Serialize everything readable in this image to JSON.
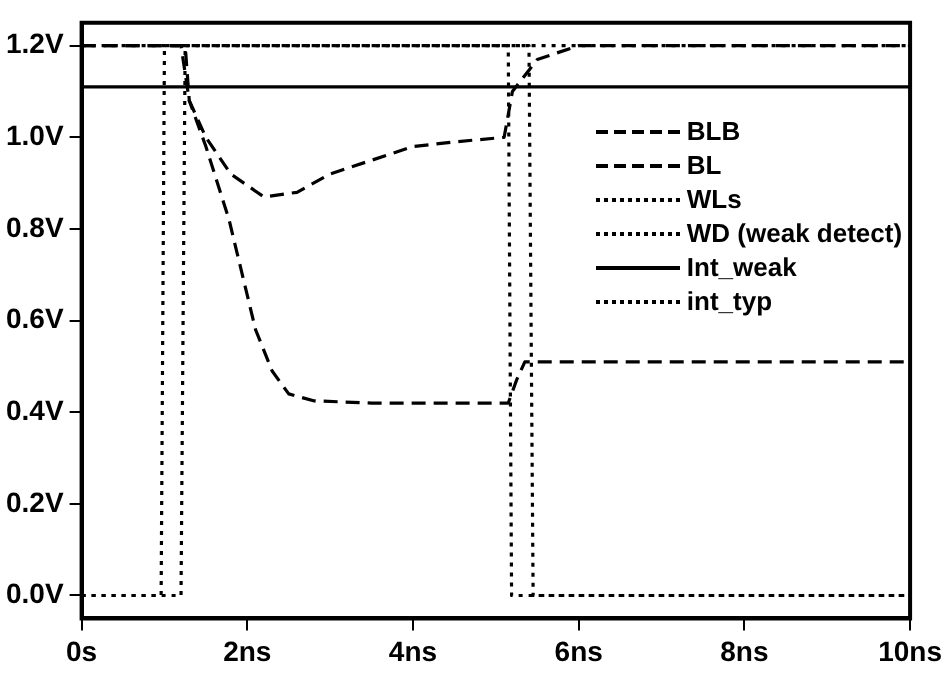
{
  "chart_data": {
    "type": "line",
    "xlim": [
      0,
      10
    ],
    "ylim": [
      -0.05,
      1.25
    ],
    "xticks": [
      {
        "value": 0,
        "label": "0s"
      },
      {
        "value": 2,
        "label": "2ns"
      },
      {
        "value": 4,
        "label": "4ns"
      },
      {
        "value": 6,
        "label": "6ns"
      },
      {
        "value": 8,
        "label": "8ns"
      },
      {
        "value": 10,
        "label": "10ns"
      }
    ],
    "yticks": [
      {
        "value": 0,
        "label": "0.0V"
      },
      {
        "value": 0.2,
        "label": "0.2V"
      },
      {
        "value": 0.4,
        "label": "0.4V"
      },
      {
        "value": 0.6,
        "label": "0.6V"
      },
      {
        "value": 0.8,
        "label": "0.8V"
      },
      {
        "value": 1.0,
        "label": "1.0V"
      },
      {
        "value": 1.2,
        "label": "1.2V"
      }
    ],
    "grid": false,
    "legend": "top right",
    "marker": "none",
    "series": [
      {
        "name": "BLB",
        "color": "#000000",
        "line_style": "dashed",
        "x": [
          0,
          1.2,
          1.3,
          1.5,
          1.8,
          2.2,
          2.6,
          3.0,
          3.5,
          4.0,
          4.5,
          5.1,
          5.2,
          5.5,
          6.0,
          10
        ],
        "values": [
          1.2,
          1.2,
          1.08,
          1.0,
          0.92,
          0.87,
          0.88,
          0.92,
          0.95,
          0.98,
          0.99,
          1.0,
          1.1,
          1.17,
          1.2,
          1.2
        ]
      },
      {
        "name": "BL",
        "color": "#000000",
        "line_style": "dashed",
        "x": [
          0,
          1.25,
          1.3,
          1.5,
          1.78,
          2.1,
          2.3,
          2.5,
          2.8,
          3.5,
          5.15,
          5.25,
          5.35,
          10
        ],
        "values": [
          1.2,
          1.2,
          1.08,
          0.98,
          0.82,
          0.58,
          0.49,
          0.44,
          0.425,
          0.42,
          0.42,
          0.47,
          0.51,
          0.51
        ]
      },
      {
        "name": "WLs",
        "color": "#000000",
        "line_style": "dotted",
        "x": [
          0,
          0.96,
          1.0,
          5.15,
          5.19,
          10
        ],
        "values": [
          0,
          0,
          1.2,
          1.2,
          0,
          0
        ]
      },
      {
        "name": "WD (weak detect)",
        "color": "#000000",
        "line_style": "dotted",
        "x": [
          0,
          1.2,
          1.25,
          5.4,
          5.45,
          10
        ],
        "values": [
          0,
          0,
          1.2,
          1.2,
          0,
          0
        ]
      },
      {
        "name": "Int_weak",
        "color": "#000000",
        "line_style": "solid",
        "x": [
          0,
          10
        ],
        "values": [
          1.11,
          1.11
        ]
      },
      {
        "name": "int_typ",
        "color": "#000000",
        "line_style": "dotted",
        "x": [
          0,
          10
        ],
        "values": [
          1.2,
          1.2
        ]
      }
    ]
  }
}
